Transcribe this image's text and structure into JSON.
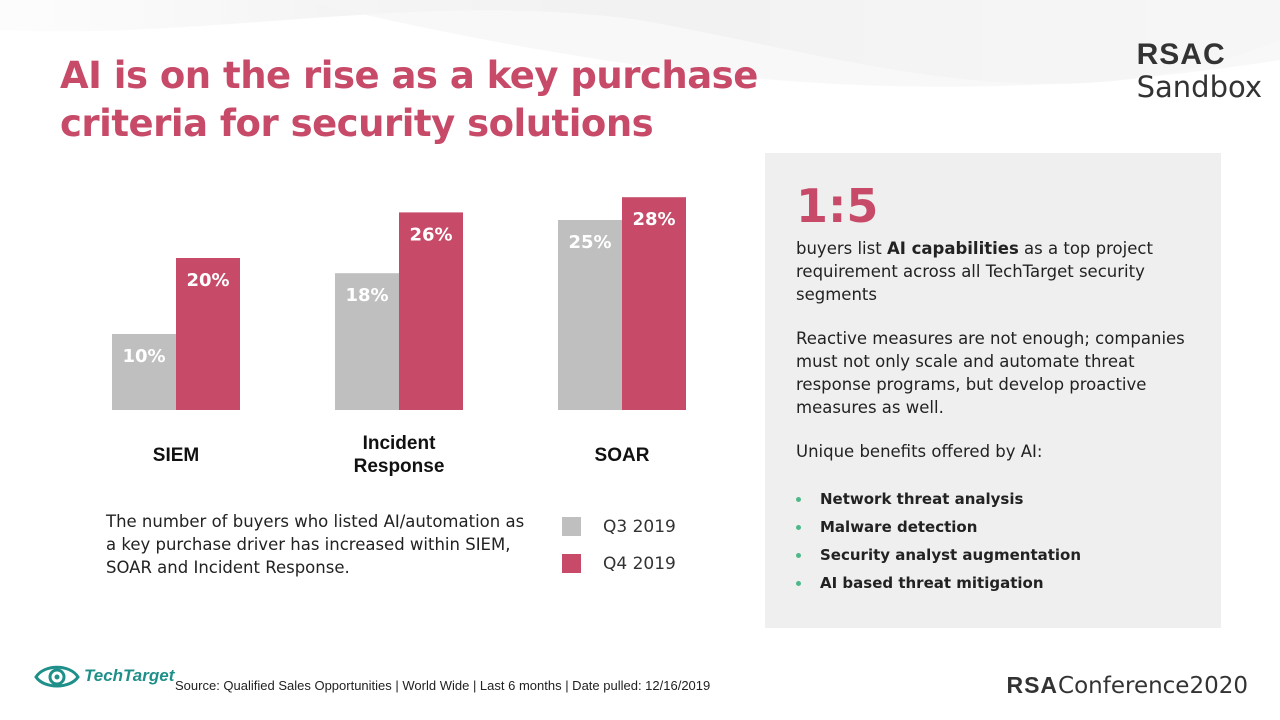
{
  "title": {
    "line1": "AI is on the rise as a key purchase",
    "line2": "criteria for security solutions"
  },
  "brand": {
    "rsac": "RSAC",
    "sandbox": "Sandbox"
  },
  "chart_data": {
    "type": "bar",
    "title": "",
    "xlabel": "",
    "ylabel": "",
    "ylim": [
      0,
      30
    ],
    "grid": false,
    "categories": [
      "SIEM",
      "Incident Response",
      "SOAR"
    ],
    "category_lines": [
      [
        "SIEM"
      ],
      [
        "Incident",
        "Response"
      ],
      [
        "SOAR"
      ]
    ],
    "series": [
      {
        "name": "Q3 2019",
        "values": [
          10,
          18,
          25
        ],
        "color": "#bfbfbf"
      },
      {
        "name": "Q4 2019",
        "values": [
          20,
          26,
          28
        ],
        "color": "#c74b69"
      }
    ],
    "value_suffix": "%",
    "legend": "bottom-right"
  },
  "chart_note": "The number of buyers who listed AI/automation as a key purchase driver has increased within SIEM, SOAR and Incident Response.",
  "panel": {
    "stat": "1:5",
    "p1_pre": "buyers list ",
    "p1_bold": "AI capabilities",
    "p1_post": " as a top project requirement across all TechTarget security segments",
    "p2": "Reactive measures are not enough; companies must not only scale and automate threat response programs, but develop proactive measures as well.",
    "p3": "Unique benefits offered by AI:",
    "benefits": [
      "Network threat analysis",
      "Malware detection",
      "Security analyst augmentation",
      "AI based threat mitigation"
    ],
    "bullet_color": "#4fb88a"
  },
  "footer": {
    "logo_name": "TechTarget",
    "source": "Source: Qualified Sales Opportunities | World Wide | Last 6 months | Date pulled: 12/16/2019",
    "conf_rsa": "RSA",
    "conf_rest": "Conference2020"
  },
  "colors": {
    "accent": "#c74b69",
    "gray_bar": "#bfbfbf",
    "panel_bg": "#efefef",
    "teal": "#1f8f8a"
  }
}
